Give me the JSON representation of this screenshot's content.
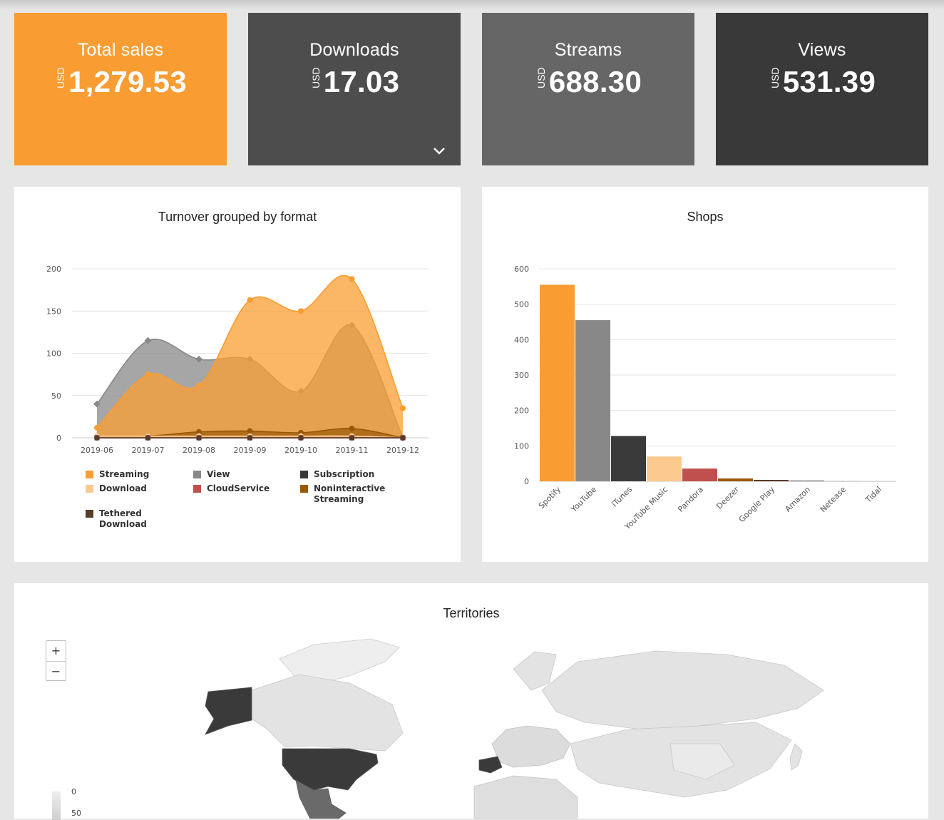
{
  "tiles": [
    {
      "title": "Total sales",
      "currency": "USD",
      "value": "1,279.53",
      "color": "#f99d33"
    },
    {
      "title": "Downloads",
      "currency": "USD",
      "value": "17.03",
      "color": "#4d4d4d"
    },
    {
      "title": "Streams",
      "currency": "USD",
      "value": "688.30",
      "color": "#666666"
    },
    {
      "title": "Views",
      "currency": "USD",
      "value": "531.39",
      "color": "#393939"
    }
  ],
  "turnover": {
    "title": "Turnover grouped by format",
    "legend": [
      {
        "label": "Streaming",
        "color": "#f99d33"
      },
      {
        "label": "View",
        "color": "#888888"
      },
      {
        "label": "Subscription",
        "color": "#3a3a3a"
      },
      {
        "label": "Download",
        "color": "#fcc98f"
      },
      {
        "label": "CloudService",
        "color": "#c0504d"
      },
      {
        "label": "Noninteractive Streaming",
        "color": "#9a5806"
      },
      {
        "label": "Tethered Download",
        "color": "#5a3a2a"
      }
    ]
  },
  "shops": {
    "title": "Shops"
  },
  "territories": {
    "title": "Territories",
    "zoom_in": "+",
    "zoom_out": "−",
    "scale_labels": [
      "0",
      "50"
    ]
  },
  "chart_data": [
    {
      "type": "area",
      "title": "Turnover grouped by format",
      "categories": [
        "2019-06",
        "2019-07",
        "2019-08",
        "2019-09",
        "2019-10",
        "2019-11",
        "2019-12"
      ],
      "ylim": [
        0,
        200
      ],
      "yticks": [
        0,
        50,
        100,
        150,
        200
      ],
      "grid": true,
      "legend_position": "bottom",
      "series": [
        {
          "name": "Streaming",
          "color": "#f99d33",
          "values": [
            12,
            75,
            62,
            163,
            150,
            188,
            35
          ]
        },
        {
          "name": "View",
          "color": "#888888",
          "values": [
            40,
            115,
            93,
            93,
            55,
            133,
            0
          ]
        },
        {
          "name": "Subscription",
          "color": "#3a3a3a",
          "values": [
            0,
            0,
            0,
            0,
            0,
            0,
            0
          ]
        },
        {
          "name": "Download",
          "color": "#fcc98f",
          "values": [
            2,
            2,
            2,
            2,
            2,
            2,
            0
          ]
        },
        {
          "name": "CloudService",
          "color": "#c0504d",
          "values": [
            0,
            0,
            0,
            0,
            0,
            0,
            0
          ]
        },
        {
          "name": "Noninteractive Streaming",
          "color": "#9a5806",
          "values": [
            1,
            2,
            7,
            8,
            6,
            11,
            0
          ]
        },
        {
          "name": "Tethered Download",
          "color": "#5a3a2a",
          "values": [
            0,
            0,
            0,
            0,
            0,
            0,
            0
          ]
        }
      ]
    },
    {
      "type": "bar",
      "title": "Shops",
      "categories": [
        "Spotify",
        "YouTube",
        "iTunes",
        "YouTube Music",
        "Pandora",
        "Deezer",
        "Google Play",
        "Amazon",
        "Netease",
        "Tidal"
      ],
      "values": [
        555,
        455,
        128,
        70,
        36,
        8,
        4,
        2,
        0.5,
        0.3
      ],
      "colors": [
        "#f99d33",
        "#888888",
        "#3a3a3a",
        "#fcc98f",
        "#c0504d",
        "#9a5806",
        "#5a3a2a",
        "#4d4d4d",
        "#999999",
        "#aaaaaa"
      ],
      "ylim": [
        0,
        600
      ],
      "yticks": [
        0,
        100,
        200,
        300,
        400,
        500,
        600
      ],
      "grid": true
    }
  ]
}
